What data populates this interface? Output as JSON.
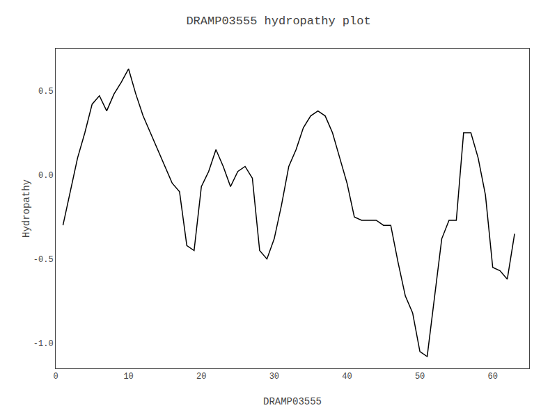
{
  "chart_data": {
    "type": "line",
    "title": "DRAMP03555 hydropathy plot",
    "xlabel": "DRAMP03555",
    "ylabel": "Hydropathy",
    "x": [
      1,
      2,
      3,
      4,
      5,
      6,
      7,
      8,
      9,
      10,
      11,
      12,
      13,
      14,
      15,
      16,
      17,
      18,
      19,
      20,
      21,
      22,
      23,
      24,
      25,
      26,
      27,
      28,
      29,
      30,
      31,
      32,
      33,
      34,
      35,
      36,
      37,
      38,
      39,
      40,
      41,
      42,
      43,
      44,
      45,
      46,
      47,
      48,
      49,
      50,
      51,
      52,
      53,
      54,
      55,
      56,
      57,
      58,
      59,
      60,
      61,
      62,
      63
    ],
    "values": [
      -0.3,
      -0.1,
      0.1,
      0.25,
      0.42,
      0.47,
      0.38,
      0.48,
      0.55,
      0.63,
      0.48,
      0.35,
      0.25,
      0.15,
      0.05,
      -0.05,
      -0.1,
      -0.42,
      -0.45,
      -0.07,
      0.02,
      0.15,
      0.05,
      -0.07,
      0.02,
      0.05,
      -0.02,
      -0.45,
      -0.5,
      -0.38,
      -0.18,
      0.05,
      0.15,
      0.28,
      0.35,
      0.38,
      0.35,
      0.25,
      0.1,
      -0.05,
      -0.25,
      -0.27,
      -0.27,
      -0.27,
      -0.3,
      -0.3,
      -0.52,
      -0.72,
      -0.82,
      -1.05,
      -1.08,
      -0.72,
      -0.38,
      -0.27,
      -0.27,
      0.25,
      0.25,
      0.1,
      -0.12,
      -0.55,
      -0.57,
      -0.62,
      -0.35
    ],
    "color": "#000000",
    "xlim": [
      0,
      65
    ],
    "ylim": [
      -1.15,
      0.75
    ],
    "xticks": [
      0,
      10,
      20,
      30,
      40,
      50,
      60
    ],
    "yticks": [
      {
        "value": -1.0,
        "label": "-1.0"
      },
      -0.5,
      {
        "value": 0,
        "label": "0.0"
      },
      0.5
    ],
    "grid": false
  }
}
